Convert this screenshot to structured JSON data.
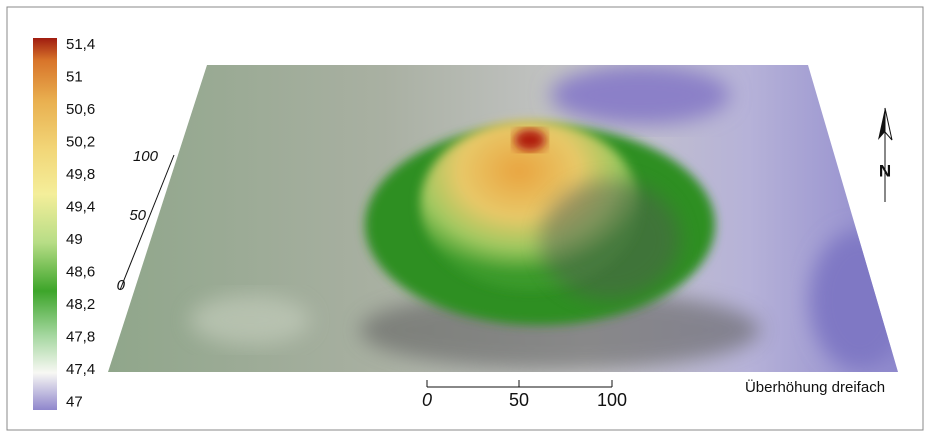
{
  "legend": {
    "labels": [
      "51,4",
      "51",
      "50,6",
      "50,2",
      "49,8",
      "49,4",
      "49",
      "48,6",
      "48,2",
      "47,8",
      "47,4",
      "47"
    ]
  },
  "side_scale": {
    "labels": [
      "100",
      "50",
      "0"
    ]
  },
  "bottom_scale": {
    "labels": [
      "0",
      "50",
      "100"
    ]
  },
  "north": "N",
  "note": "Überhöhung dreifach"
}
